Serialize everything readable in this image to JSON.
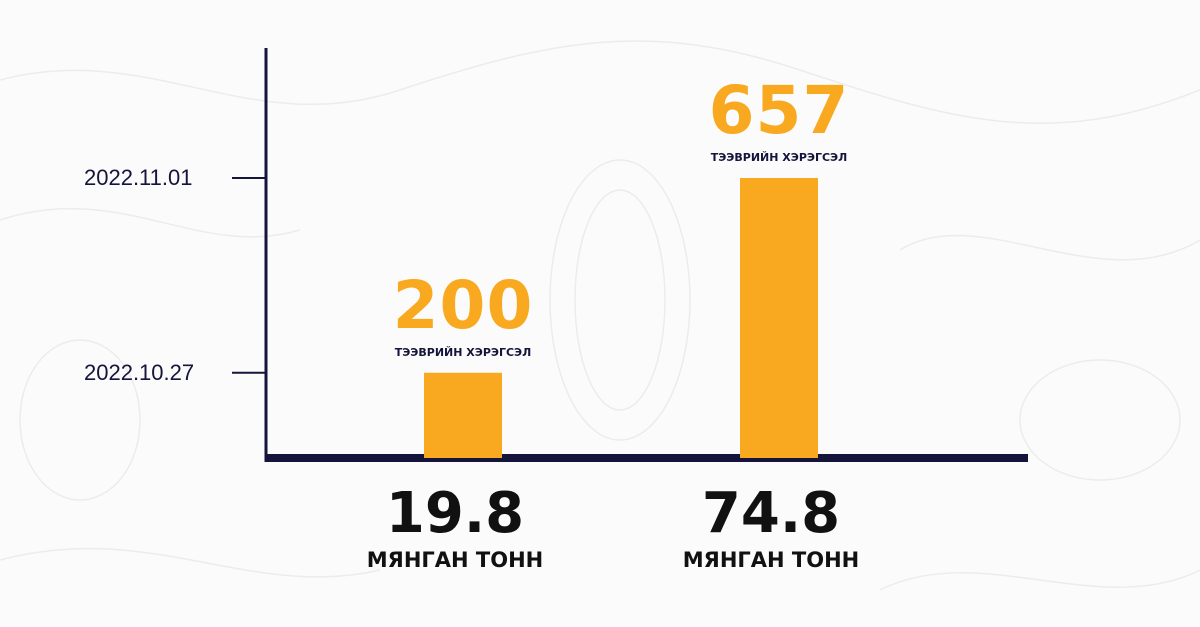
{
  "chart_data": {
    "type": "bar",
    "categories": [
      "2022.10.27",
      "2022.11.01"
    ],
    "values": [
      200,
      657
    ],
    "value_captions": [
      "ТЭЭВРИЙН ХЭРЭГСЭЛ",
      "ТЭЭВРИЙН ХЭРЭГСЭЛ"
    ],
    "x_values": [
      "19.8",
      "74.8"
    ],
    "x_unit": [
      "МЯНГАН ТОНН",
      "МЯНГАН ТОНН"
    ],
    "orientation": "vertical",
    "grid": false,
    "colors": {
      "bar": "#f9a91f",
      "axis": "#15143a"
    }
  }
}
